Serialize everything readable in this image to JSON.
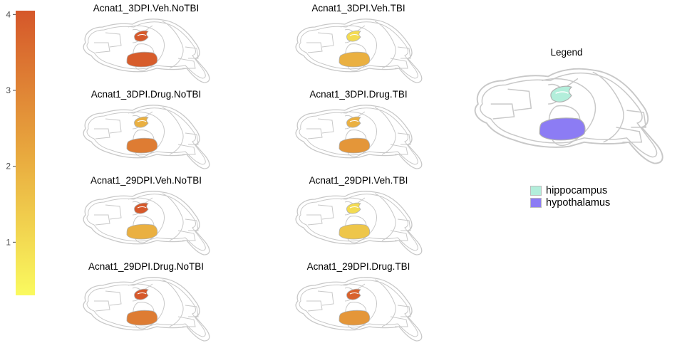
{
  "chart_data": {
    "type": "heatmap",
    "colorbar": {
      "ticks": [
        1,
        2,
        3,
        4
      ],
      "range": [
        0.3,
        4.05
      ],
      "low_color": "#fafa5f",
      "mid_color": "#e8a83e",
      "high_color": "#d5572a"
    },
    "panels": [
      {
        "title": "Acnat1_3DPI.Veh.NoTBI",
        "hippocampus": 4.0,
        "hypothalamus": 3.9
      },
      {
        "title": "Acnat1_3DPI.Veh.TBI",
        "hippocampus": 1.0,
        "hypothalamus": 2.0
      },
      {
        "title": "Acnat1_3DPI.Drug.NoTBI",
        "hippocampus": 2.0,
        "hypothalamus": 3.2
      },
      {
        "title": "Acnat1_3DPI.Drug.TBI",
        "hippocampus": 2.0,
        "hypothalamus": 2.6
      },
      {
        "title": "Acnat1_29DPI.Veh.NoTBI",
        "hippocampus": 4.0,
        "hypothalamus": 2.0
      },
      {
        "title": "Acnat1_29DPI.Veh.TBI",
        "hippocampus": 1.0,
        "hypothalamus": 1.5
      },
      {
        "title": "Acnat1_29DPI.Drug.NoTBI",
        "hippocampus": 4.0,
        "hypothalamus": 3.2
      },
      {
        "title": "Acnat1_29DPI.Drug.TBI",
        "hippocampus": 3.8,
        "hypothalamus": 2.6
      }
    ],
    "legend": {
      "title": "Legend",
      "entries": [
        {
          "name": "hippocampus",
          "color": "#b3eedb"
        },
        {
          "name": "hypothalamus",
          "color": "#8c7cf4"
        }
      ]
    }
  }
}
